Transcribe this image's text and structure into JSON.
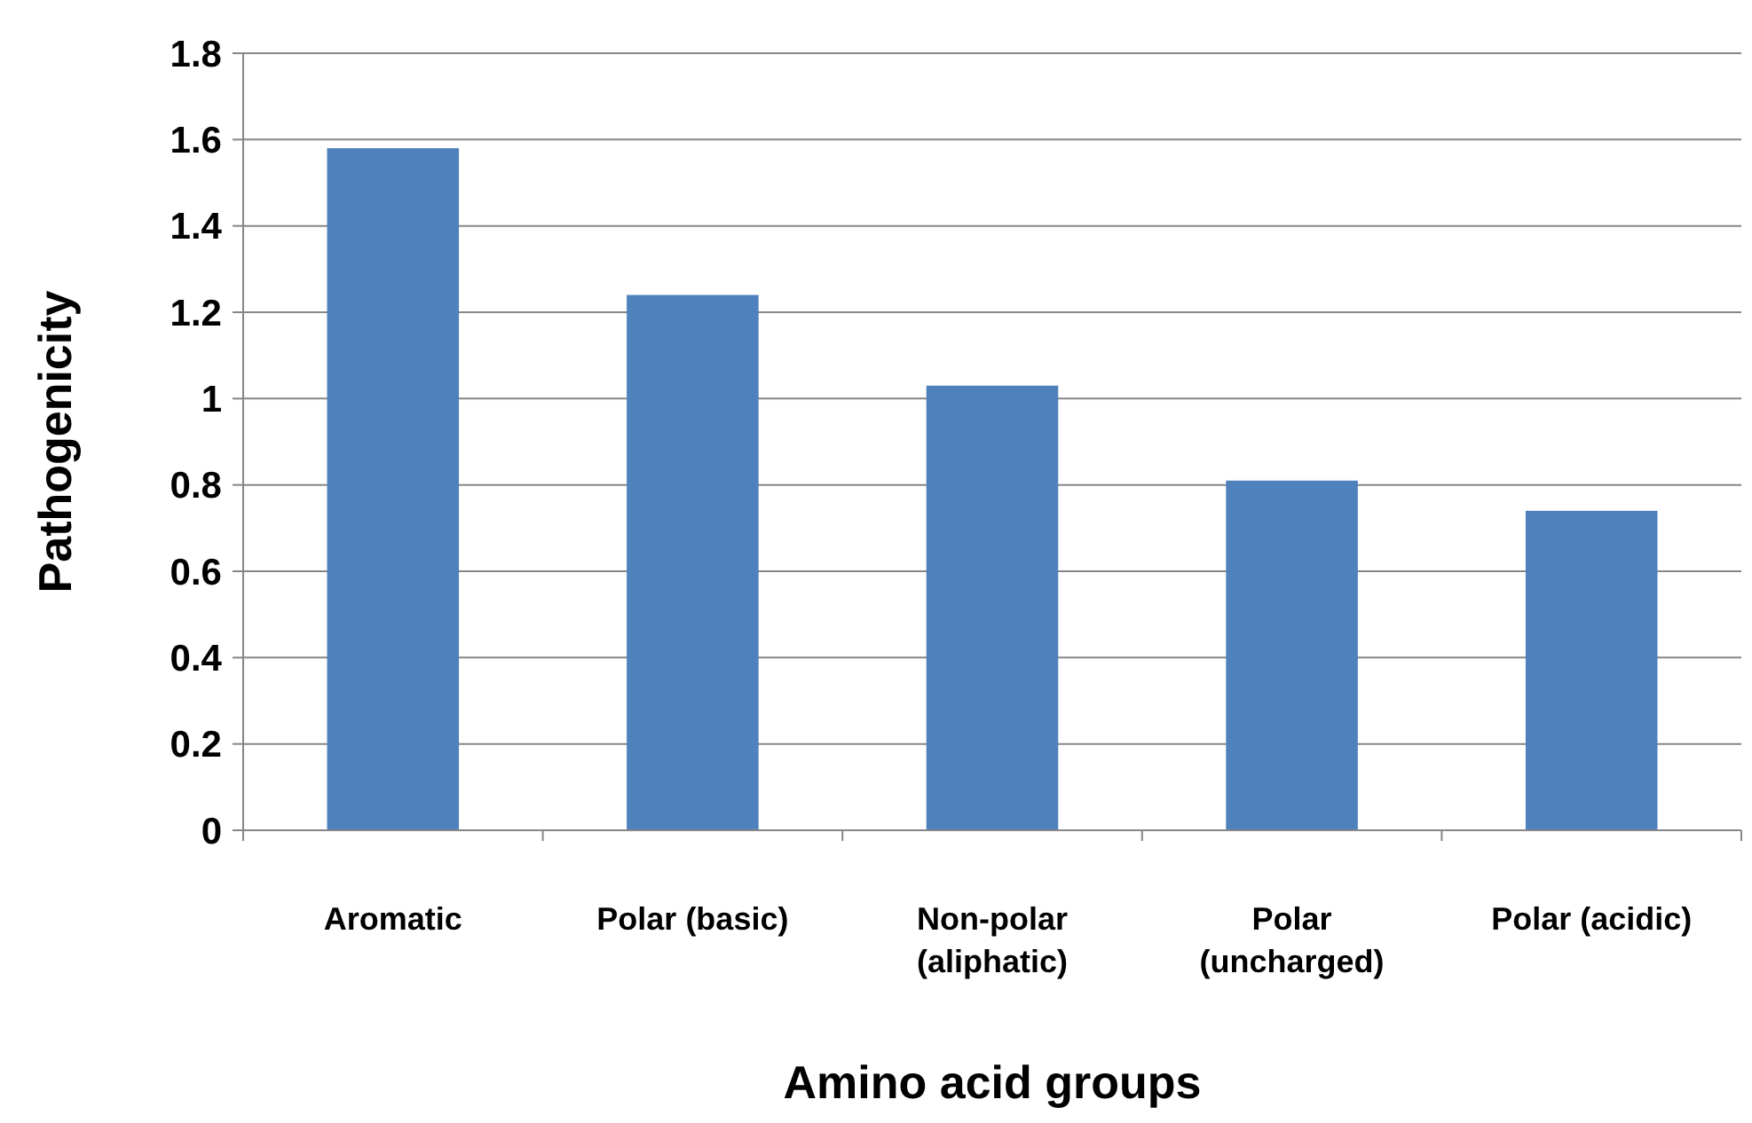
{
  "chart_data": {
    "type": "bar",
    "xlabel": "Amino acid groups",
    "ylabel": "Pathogenicity",
    "categories": [
      "Aromatic",
      "Polar (basic)",
      "Non-polar (aliphatic)",
      "Polar (uncharged)",
      "Polar (acidic)"
    ],
    "values": [
      1.58,
      1.24,
      1.03,
      0.81,
      0.74
    ],
    "color": "#4f81bd",
    "ylim": [
      0,
      1.8
    ],
    "yticks": [
      0,
      0.2,
      0.4,
      0.6,
      0.8,
      1,
      1.2,
      1.4,
      1.6,
      1.8
    ],
    "grid": "y"
  }
}
